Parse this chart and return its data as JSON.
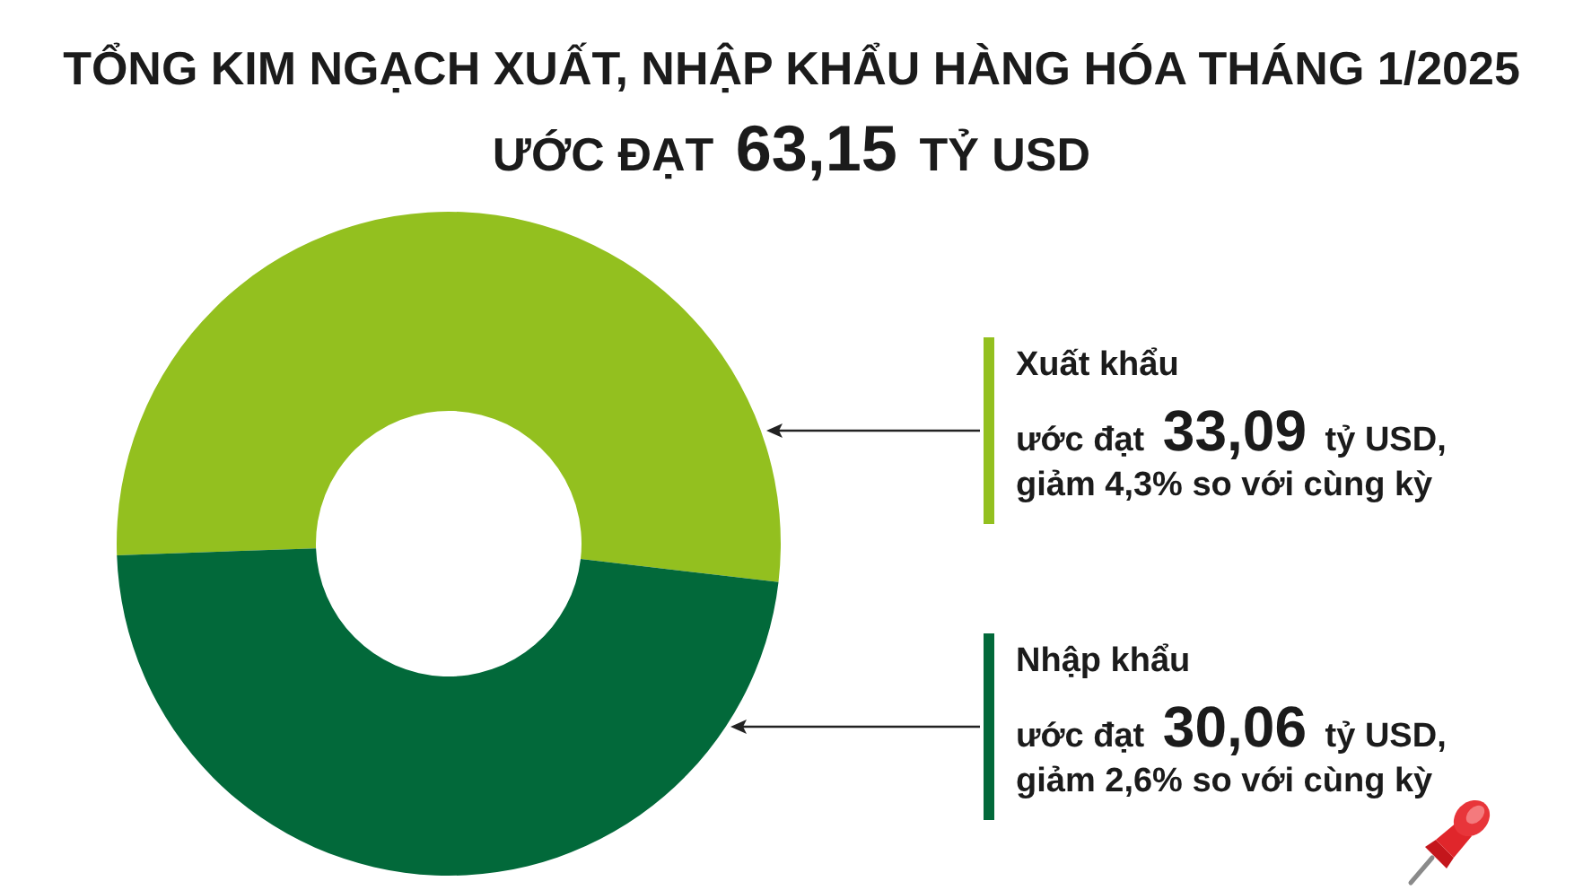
{
  "chart_data": {
    "type": "donut",
    "title": "TỔNG KIM NGẠCH XUẤT, NHẬP KHẨU HÀNG HÓA THÁNG 1/2025",
    "subtitle": "ƯỚC ĐẠT 63,15 TỶ USD",
    "categories": [
      "Xuất khẩu",
      "Nhập khẩu"
    ],
    "values": [
      33.09,
      30.06
    ],
    "colors": [
      "#93c01f",
      "#02693a"
    ],
    "value_labels": [
      "ước đạt 33,09 tỷ USD,",
      "ước đạt 30,06 tỷ USD,"
    ],
    "annotations": [
      "giảm 4,3% so với cùng kỳ",
      "giảm 2,6% so với cùng kỳ"
    ]
  }
}
